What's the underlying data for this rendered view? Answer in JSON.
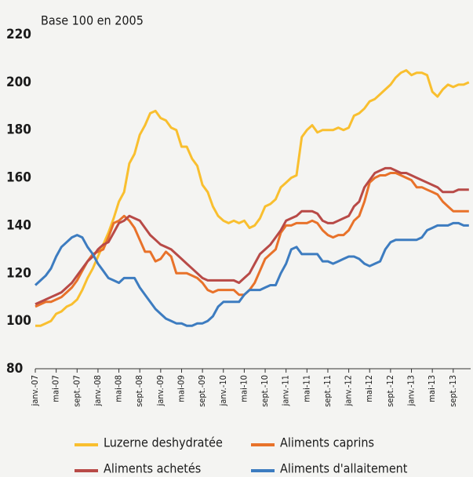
{
  "chart_data": {
    "type": "line",
    "subtitle": "Base 100 en 2005",
    "categories": [
      "janv.-07",
      null,
      null,
      null,
      "mai-07",
      null,
      null,
      null,
      "sept.-07",
      null,
      null,
      null,
      "janv.-08",
      null,
      null,
      null,
      "mai-08",
      null,
      null,
      null,
      "sept.-08",
      null,
      null,
      null,
      "janv.-09",
      null,
      null,
      null,
      "mai-09",
      null,
      null,
      null,
      "sept.-09",
      null,
      null,
      null,
      "janv.-10",
      null,
      null,
      null,
      "mai-10",
      null,
      null,
      null,
      "sept.-10",
      null,
      null,
      null,
      "janv.-11",
      null,
      null,
      null,
      "mai-11",
      null,
      null,
      null,
      "sept.-11",
      null,
      null,
      null,
      "janv.-12",
      null,
      null,
      null,
      "mai-12",
      null,
      null,
      null,
      "sept.-12",
      null,
      null,
      null,
      "janv.-13",
      null,
      null,
      null,
      "mai-13",
      null,
      null,
      null,
      "sept.-13",
      null,
      null,
      null
    ],
    "ylim": [
      80,
      220
    ],
    "yticks": [
      80,
      100,
      120,
      140,
      160,
      180,
      200,
      220
    ],
    "grid": false,
    "series": [
      {
        "name": "Luzerne deshydratée",
        "color": "#f9bf2f",
        "values": [
          98,
          98,
          99,
          100,
          103,
          104,
          106,
          107,
          109,
          113,
          118,
          122,
          127,
          132,
          137,
          143,
          150,
          154,
          166,
          170,
          178,
          182,
          187,
          188,
          185,
          184,
          181,
          180,
          173,
          173,
          168,
          165,
          157,
          154,
          148,
          144,
          142,
          141,
          142,
          141,
          142,
          139,
          140,
          143,
          148,
          149,
          151,
          156,
          158,
          160,
          161,
          177,
          180,
          182,
          179,
          180,
          180,
          180,
          181,
          180,
          181,
          186,
          187,
          189,
          192,
          193,
          195,
          197,
          199,
          202,
          204,
          205,
          203,
          204,
          204,
          203,
          196,
          194,
          197,
          199,
          198,
          199,
          199,
          200
        ]
      },
      {
        "name": "Aliments caprins",
        "color": "#e8722a",
        "values": [
          106,
          107,
          108,
          108,
          109,
          110,
          112,
          114,
          117,
          121,
          125,
          128,
          129,
          130,
          135,
          141,
          142,
          144,
          142,
          139,
          134,
          129,
          129,
          125,
          126,
          129,
          127,
          120,
          120,
          120,
          119,
          118,
          116,
          113,
          112,
          113,
          113,
          113,
          113,
          111,
          111,
          113,
          116,
          121,
          126,
          128,
          130,
          137,
          140,
          140,
          141,
          141,
          141,
          142,
          141,
          138,
          136,
          135,
          136,
          136,
          138,
          142,
          144,
          150,
          158,
          160,
          161,
          161,
          162,
          162,
          161,
          160,
          159,
          156,
          156,
          155,
          154,
          153,
          150,
          148,
          146,
          146,
          146,
          146
        ]
      },
      {
        "name": "Aliments achetés",
        "color": "#b84a47",
        "values": [
          107,
          108,
          109,
          110,
          111,
          112,
          114,
          116,
          119,
          122,
          125,
          127,
          130,
          132,
          133,
          137,
          141,
          142,
          144,
          143,
          142,
          139,
          136,
          134,
          132,
          131,
          130,
          128,
          126,
          124,
          122,
          120,
          118,
          117,
          117,
          117,
          117,
          117,
          117,
          116,
          118,
          120,
          124,
          128,
          130,
          132,
          135,
          138,
          142,
          143,
          144,
          146,
          146,
          146,
          145,
          142,
          141,
          141,
          142,
          143,
          144,
          148,
          150,
          156,
          159,
          162,
          163,
          164,
          164,
          163,
          162,
          162,
          161,
          160,
          159,
          158,
          157,
          156,
          154,
          154,
          154,
          155,
          155,
          155
        ]
      },
      {
        "name": "Aliments d'allaitement",
        "color": "#3d7cc0",
        "values": [
          115,
          117,
          119,
          122,
          127,
          131,
          133,
          135,
          136,
          135,
          131,
          128,
          124,
          121,
          118,
          117,
          116,
          118,
          118,
          118,
          114,
          111,
          108,
          105,
          103,
          101,
          100,
          99,
          99,
          98,
          98,
          99,
          99,
          100,
          102,
          106,
          108,
          108,
          108,
          108,
          111,
          113,
          113,
          113,
          114,
          115,
          115,
          120,
          124,
          130,
          131,
          128,
          128,
          128,
          128,
          125,
          125,
          124,
          125,
          126,
          127,
          127,
          126,
          124,
          123,
          124,
          125,
          130,
          133,
          134,
          134,
          134,
          134,
          134,
          135,
          138,
          139,
          140,
          140,
          140,
          141,
          141,
          140,
          140
        ]
      }
    ]
  }
}
